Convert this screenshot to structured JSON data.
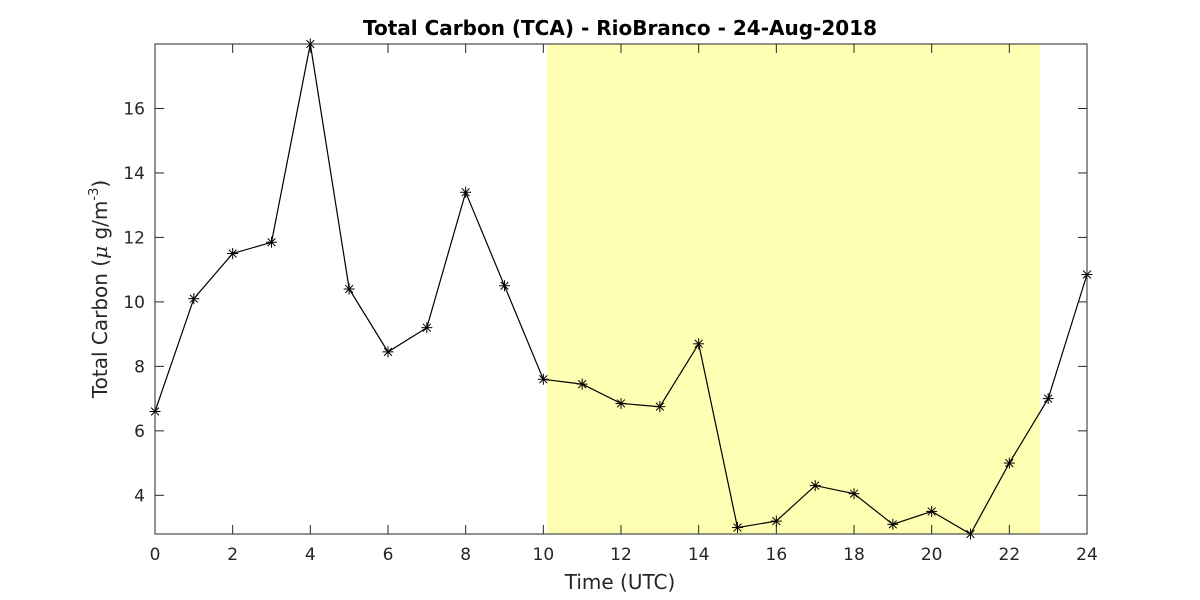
{
  "chart_data": {
    "type": "line",
    "title": "Total Carbon (TCA) - RioBranco - 24-Aug-2018",
    "xlabel": "Time (UTC)",
    "ylabel_prefix": "Total Carbon (",
    "ylabel_mu": "μ",
    "ylabel_unit": " g/m",
    "ylabel_exp": "-3",
    "ylabel_suffix": ")",
    "xlim": [
      0,
      24
    ],
    "ylim": [
      2.8,
      18
    ],
    "xticks": [
      0,
      2,
      4,
      6,
      8,
      10,
      12,
      14,
      16,
      18,
      20,
      22,
      24
    ],
    "yticks": [
      4,
      6,
      8,
      10,
      12,
      14,
      16
    ],
    "grid": false,
    "marker": "asterisk",
    "line_color": "#000000",
    "shaded_region": {
      "x_start": 10.1,
      "x_end": 22.8,
      "color": "#ffffb3"
    },
    "x": [
      0,
      1,
      2,
      3,
      4,
      5,
      6,
      7,
      8,
      9,
      10,
      11,
      12,
      13,
      14,
      15,
      16,
      17,
      18,
      19,
      20,
      21,
      22,
      23,
      24
    ],
    "y": [
      6.6,
      10.1,
      11.5,
      11.85,
      18.0,
      10.4,
      8.45,
      9.2,
      13.4,
      10.5,
      7.6,
      7.45,
      6.85,
      6.75,
      8.7,
      3.0,
      3.2,
      4.3,
      4.05,
      3.1,
      3.5,
      2.8,
      5.0,
      7.0,
      10.85
    ]
  }
}
